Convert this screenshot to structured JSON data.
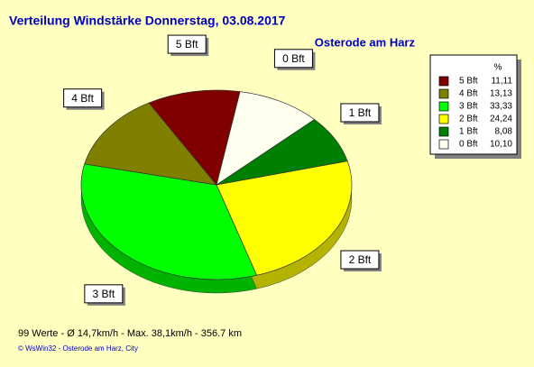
{
  "chart_data": {
    "type": "pie",
    "title": "Verteilung Windstärke  Donnerstag, 03.08.2017",
    "subtitle": "Osterode am Harz",
    "legend_header": "%",
    "categories": [
      "5 Bft",
      "4 Bft",
      "3 Bft",
      "2 Bft",
      "1 Bft",
      "0 Bft"
    ],
    "values": [
      11.11,
      13.13,
      33.33,
      24.24,
      8.08,
      10.1
    ],
    "value_labels": [
      "11,11",
      "13,13",
      "33,33",
      "24,24",
      "8,08",
      "10,10"
    ],
    "colors": [
      "#800000",
      "#808000",
      "#00ff00",
      "#ffff00",
      "#008000",
      "#fffff0"
    ],
    "legend": "top-right",
    "footer": "99 Werte   -   Ø 14,7km/h  -  Max. 38,1km/h   -   356.7 km",
    "copyright": "© WsWin32   -   Osterode am Harz, City"
  }
}
